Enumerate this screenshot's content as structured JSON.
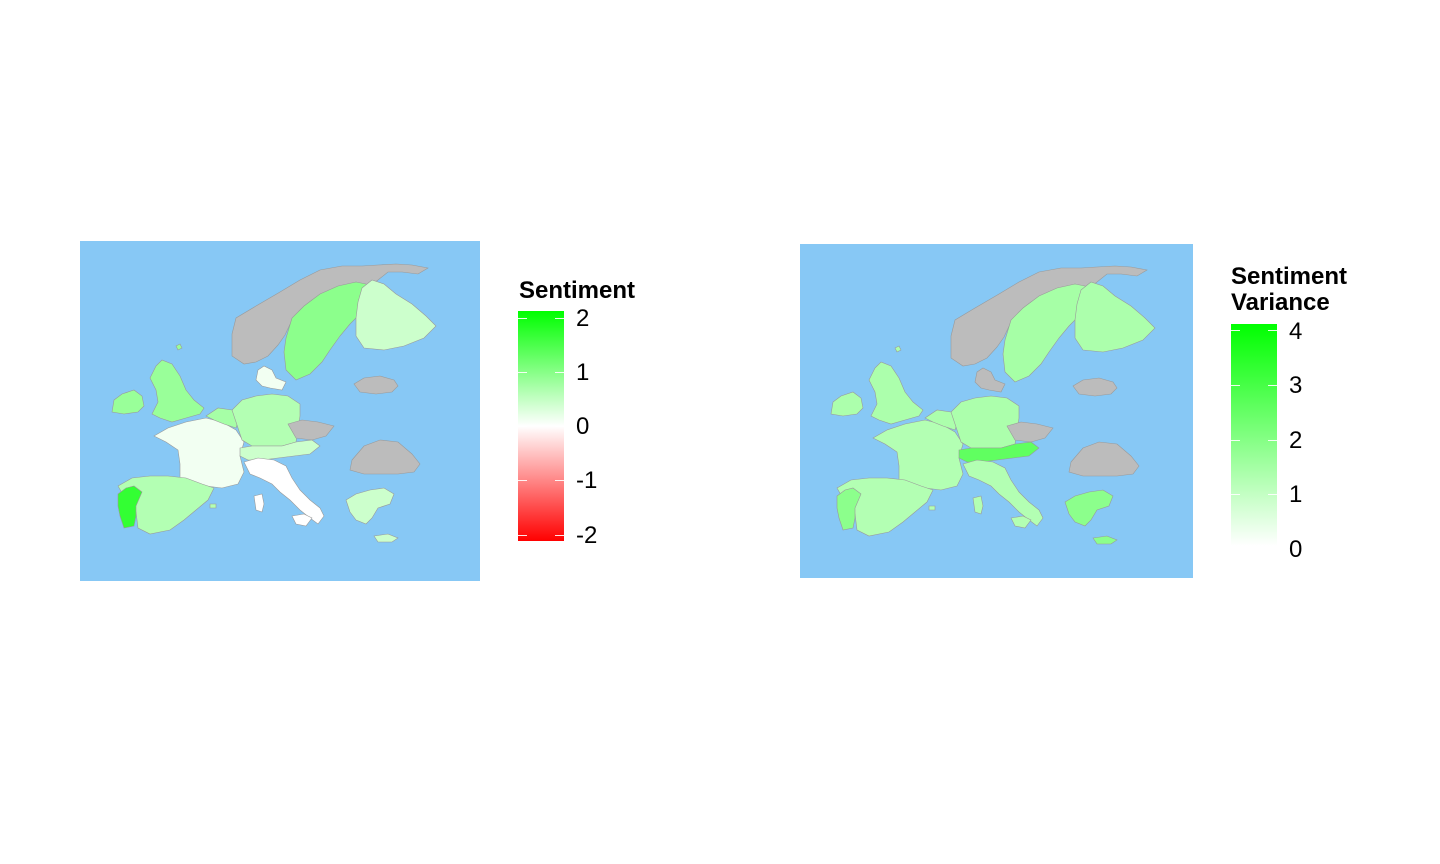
{
  "colors": {
    "sea": "#87c8f5",
    "no_data": "#bcbcbc",
    "border": "#9a9a9a"
  },
  "maps": [
    {
      "id": "sentiment",
      "legend": {
        "title_lines": [
          "Sentiment"
        ],
        "ticks": [
          "2",
          "1",
          "0",
          "-1",
          "-2"
        ],
        "gradient": [
          "#00ff00",
          "#ffffff",
          "#ff0000"
        ],
        "range": [
          -2,
          2
        ]
      },
      "regions": {
        "norway": "no-data",
        "sweden": 0.9,
        "finland": 0.4,
        "uk": 0.8,
        "ireland": 0.8,
        "france": 0.1,
        "spain": 0.6,
        "portugal": 1.6,
        "germany": 0.6,
        "benelux": 0.7,
        "denmark": 0.1,
        "czechia": "no-data",
        "austria_switzerland": 0.4,
        "italy": 0.0,
        "sardinia": 0.0,
        "sicily": 0.0,
        "greece": 0.4,
        "romania": "no-data",
        "baltic": "no-data"
      }
    },
    {
      "id": "variance",
      "legend": {
        "title_lines": [
          "Sentiment",
          "Variance"
        ],
        "ticks": [
          "4",
          "3",
          "2",
          "1",
          "0"
        ],
        "gradient": [
          "#00ff00",
          "#ffffff"
        ],
        "range": [
          0,
          4
        ]
      },
      "regions": {
        "norway": "no-data",
        "sweden": 1.4,
        "finland": 1.3,
        "uk": 1.3,
        "ireland": 1.3,
        "france": 1.2,
        "spain": 1.2,
        "portugal": 1.8,
        "germany": 1.3,
        "benelux": 1.3,
        "denmark": "no-data",
        "czechia": "no-data",
        "austria_switzerland": 2.5,
        "italy": 1.2,
        "sardinia": 1.2,
        "sicily": 1.2,
        "greece": 1.8,
        "romania": "no-data",
        "baltic": "no-data"
      }
    }
  ]
}
